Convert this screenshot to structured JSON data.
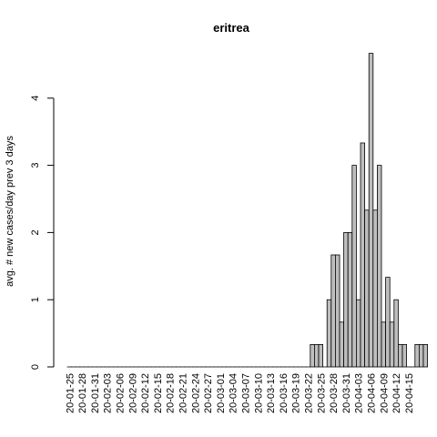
{
  "chart_data": {
    "type": "bar",
    "title": "eritrea",
    "xlabel": "",
    "ylabel": "avg. # new cases/day prev  3  days",
    "ylim": [
      0,
      4.7
    ],
    "yticks": [
      0,
      1,
      2,
      3,
      4
    ],
    "bar_color": "#bebebe",
    "start_date": "2020-01-25",
    "tick_labels": [
      "20-01-25",
      "20-01-28",
      "20-01-31",
      "20-02-03",
      "20-02-06",
      "20-02-09",
      "20-02-12",
      "20-02-15",
      "20-02-18",
      "20-02-21",
      "20-02-24",
      "20-02-27",
      "20-03-01",
      "20-03-04",
      "20-03-07",
      "20-03-10",
      "20-03-13",
      "20-03-16",
      "20-03-19",
      "20-03-22",
      "20-03-25",
      "20-03-28",
      "20-03-31",
      "20-04-03",
      "20-04-06",
      "20-04-09",
      "20-04-12",
      "20-04-15"
    ],
    "values": [
      0,
      0,
      0,
      0,
      0,
      0,
      0,
      0,
      0,
      0,
      0,
      0,
      0,
      0,
      0,
      0,
      0,
      0,
      0,
      0,
      0,
      0,
      0,
      0,
      0,
      0,
      0,
      0,
      0,
      0,
      0,
      0,
      0,
      0,
      0,
      0,
      0,
      0,
      0,
      0,
      0,
      0,
      0,
      0,
      0,
      0,
      0,
      0,
      0,
      0,
      0,
      0,
      0,
      0,
      0,
      0,
      0,
      0,
      0.3333,
      0.3333,
      0.3333,
      0,
      1,
      1.6667,
      1.6667,
      0.6667,
      2,
      2,
      3,
      1,
      3.3333,
      2.3333,
      4.6667,
      2.3333,
      3,
      0.6667,
      1.3333,
      0.6667,
      1,
      0.3333,
      0.3333,
      0,
      0,
      0.3333,
      0.3333,
      0.3333
    ]
  }
}
